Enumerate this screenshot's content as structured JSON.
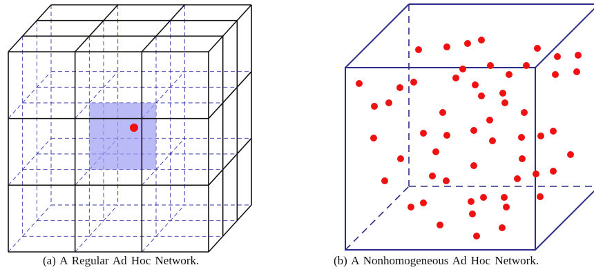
{
  "figure": {
    "panel_a": {
      "caption": "(a) A Regular Ad Hoc Network.",
      "grid_divisions": 3,
      "highlight_fill": "#9c9cf2",
      "node_color": "#ee1111",
      "edge_color": "#111111",
      "hidden_edge_color": "#3333aa"
    },
    "panel_b": {
      "caption": "(b) A Nonhomogeneous Ad Hoc Network.",
      "frame_color": "#2b2b8a",
      "node_color": "#ee1111",
      "node_count": 56
    }
  }
}
